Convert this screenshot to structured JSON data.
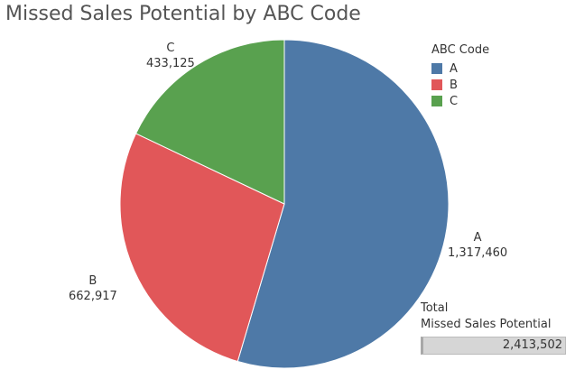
{
  "chart_data": {
    "type": "pie",
    "title": "Missed Sales Potential by ABC Code",
    "categories": [
      "A",
      "B",
      "C"
    ],
    "values": [
      1317460,
      662917,
      433125
    ],
    "value_labels": [
      "1,317,460",
      "662,917",
      "433,125"
    ],
    "colors": [
      "#4e79a7",
      "#e15759",
      "#59a14f"
    ],
    "legend": {
      "title": "ABC Code",
      "placement": "top-right",
      "items": [
        {
          "label": "A",
          "color": "#4e79a7"
        },
        {
          "label": "B",
          "color": "#e15759"
        },
        {
          "label": "C",
          "color": "#59a14f"
        }
      ]
    },
    "total": {
      "line1": "Total",
      "line2": "Missed Sales Potential",
      "value": "2,413,502",
      "fill_fraction": 1
    }
  }
}
